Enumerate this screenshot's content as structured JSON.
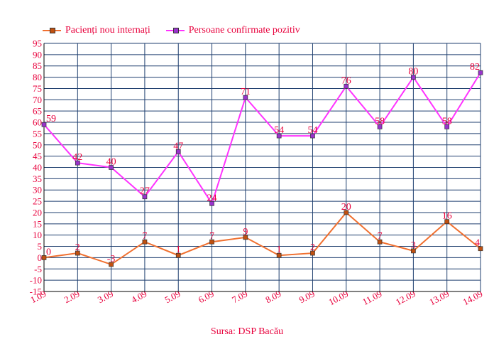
{
  "chart_data": {
    "type": "line",
    "categories": [
      "1.09",
      "2.09",
      "3.09",
      "4.09",
      "5.09",
      "6.09",
      "7.09",
      "8.09",
      "9.09",
      "10.09",
      "11.09",
      "12.09",
      "13.09",
      "14.09"
    ],
    "series": [
      {
        "name": "Pacienți nou internați",
        "color": "#f07030",
        "marker_color": "#c05010",
        "values": [
          0,
          2,
          -3,
          7,
          1,
          7,
          9,
          1,
          2,
          20,
          7,
          3,
          16,
          4
        ]
      },
      {
        "name": "Persoane confirmate pozitiv",
        "color": "#ff33ff",
        "marker_color": "#9933cc",
        "values": [
          59,
          42,
          40,
          27,
          47,
          24,
          71,
          54,
          54,
          76,
          58,
          80,
          58,
          82
        ]
      }
    ],
    "ylim": [
      -15,
      95
    ],
    "ytick_step": 5,
    "grid": true,
    "legend_position": "top-left",
    "label_color": "#e8003c",
    "grid_color": "#1f3f6f"
  },
  "source_text": "Sursa: DSP Bacău"
}
